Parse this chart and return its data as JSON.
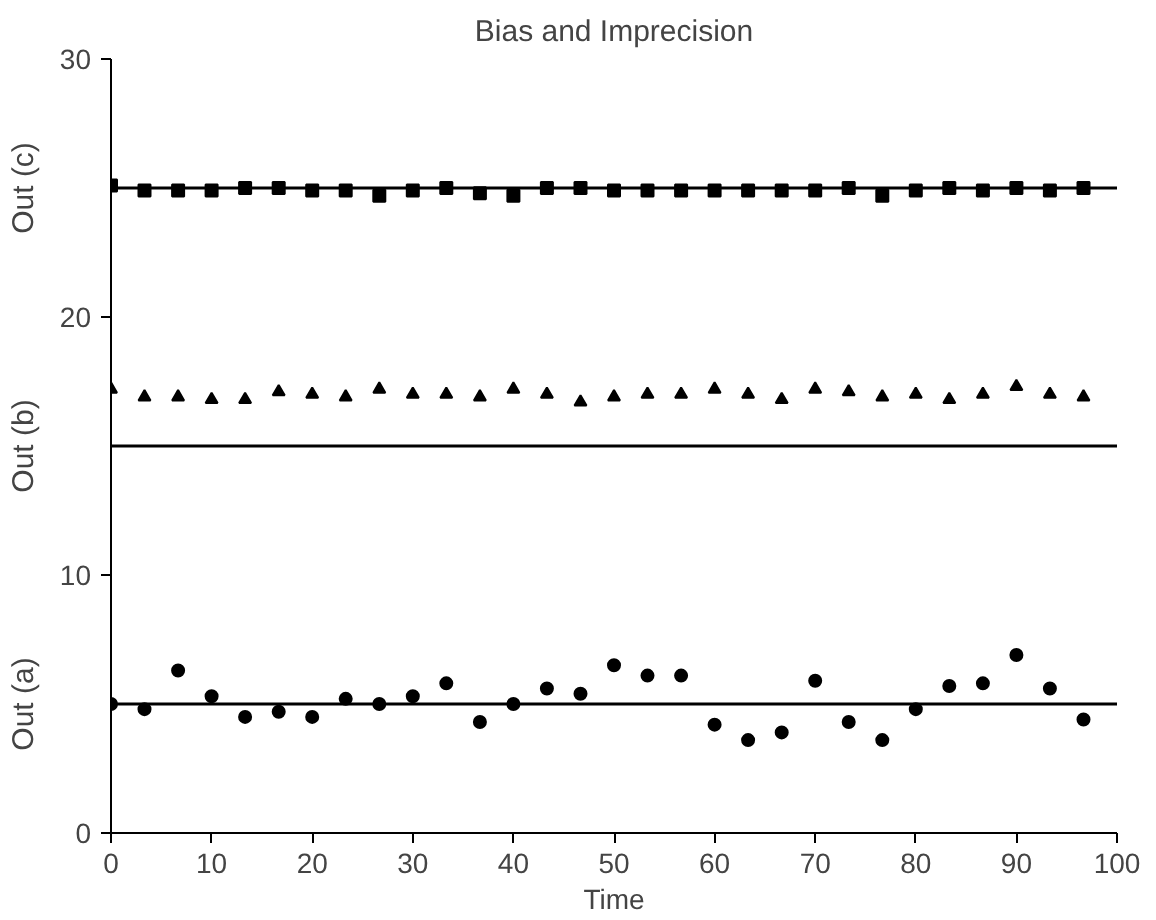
{
  "chart_data": {
    "type": "scatter",
    "title": "Bias and Imprecision",
    "xlabel": "Time",
    "xlim": [
      0,
      100
    ],
    "xticks": [
      0,
      10,
      20,
      30,
      40,
      50,
      60,
      70,
      80,
      90,
      100
    ],
    "ylim": [
      0,
      30
    ],
    "yticks": [
      0,
      10,
      20,
      30
    ],
    "grid": false,
    "x": [
      0,
      3.33,
      6.67,
      10,
      13.33,
      16.67,
      20,
      23.33,
      26.67,
      30,
      33.33,
      36.67,
      40,
      43.33,
      46.67,
      50,
      53.33,
      56.67,
      60,
      63.33,
      66.67,
      70,
      73.33,
      76.67,
      80,
      83.33,
      86.67,
      90,
      93.33,
      96.67
    ],
    "series": [
      {
        "name": "Out (a)",
        "color": "#000000",
        "marker": "circle",
        "values": [
          5.0,
          4.8,
          6.3,
          5.3,
          4.5,
          4.7,
          4.5,
          5.2,
          5.0,
          5.3,
          5.8,
          4.3,
          5.0,
          5.6,
          5.4,
          6.5,
          6.1,
          6.1,
          4.2,
          3.6,
          3.9,
          5.9,
          4.3,
          3.6,
          4.8,
          5.7,
          5.8,
          6.9,
          5.6,
          4.4
        ]
      },
      {
        "name": "Out (b)",
        "color": "#000000",
        "marker": "triangle",
        "values": [
          17.2,
          16.9,
          16.9,
          16.8,
          16.8,
          17.1,
          17.0,
          16.9,
          17.2,
          17.0,
          17.0,
          16.9,
          17.2,
          17.0,
          16.7,
          16.9,
          17.0,
          17.0,
          17.2,
          17.0,
          16.8,
          17.2,
          17.1,
          16.9,
          17.0,
          16.8,
          17.0,
          17.3,
          17.0,
          16.9
        ]
      },
      {
        "name": "Out (c)",
        "color": "#000000",
        "marker": "square",
        "values": [
          25.1,
          24.9,
          24.9,
          24.9,
          25.0,
          25.0,
          24.9,
          24.9,
          24.7,
          24.9,
          25.0,
          24.8,
          24.7,
          25.0,
          25.0,
          24.9,
          24.9,
          24.9,
          24.9,
          24.9,
          24.9,
          24.9,
          25.0,
          24.7,
          24.9,
          25.0,
          24.9,
          25.0,
          24.9,
          25.0
        ]
      }
    ],
    "ref_lines": [
      {
        "axis": "y",
        "value": 5,
        "color": "#000000"
      },
      {
        "axis": "y",
        "value": 15,
        "color": "#000000"
      },
      {
        "axis": "y",
        "value": 25,
        "color": "#000000"
      }
    ]
  }
}
